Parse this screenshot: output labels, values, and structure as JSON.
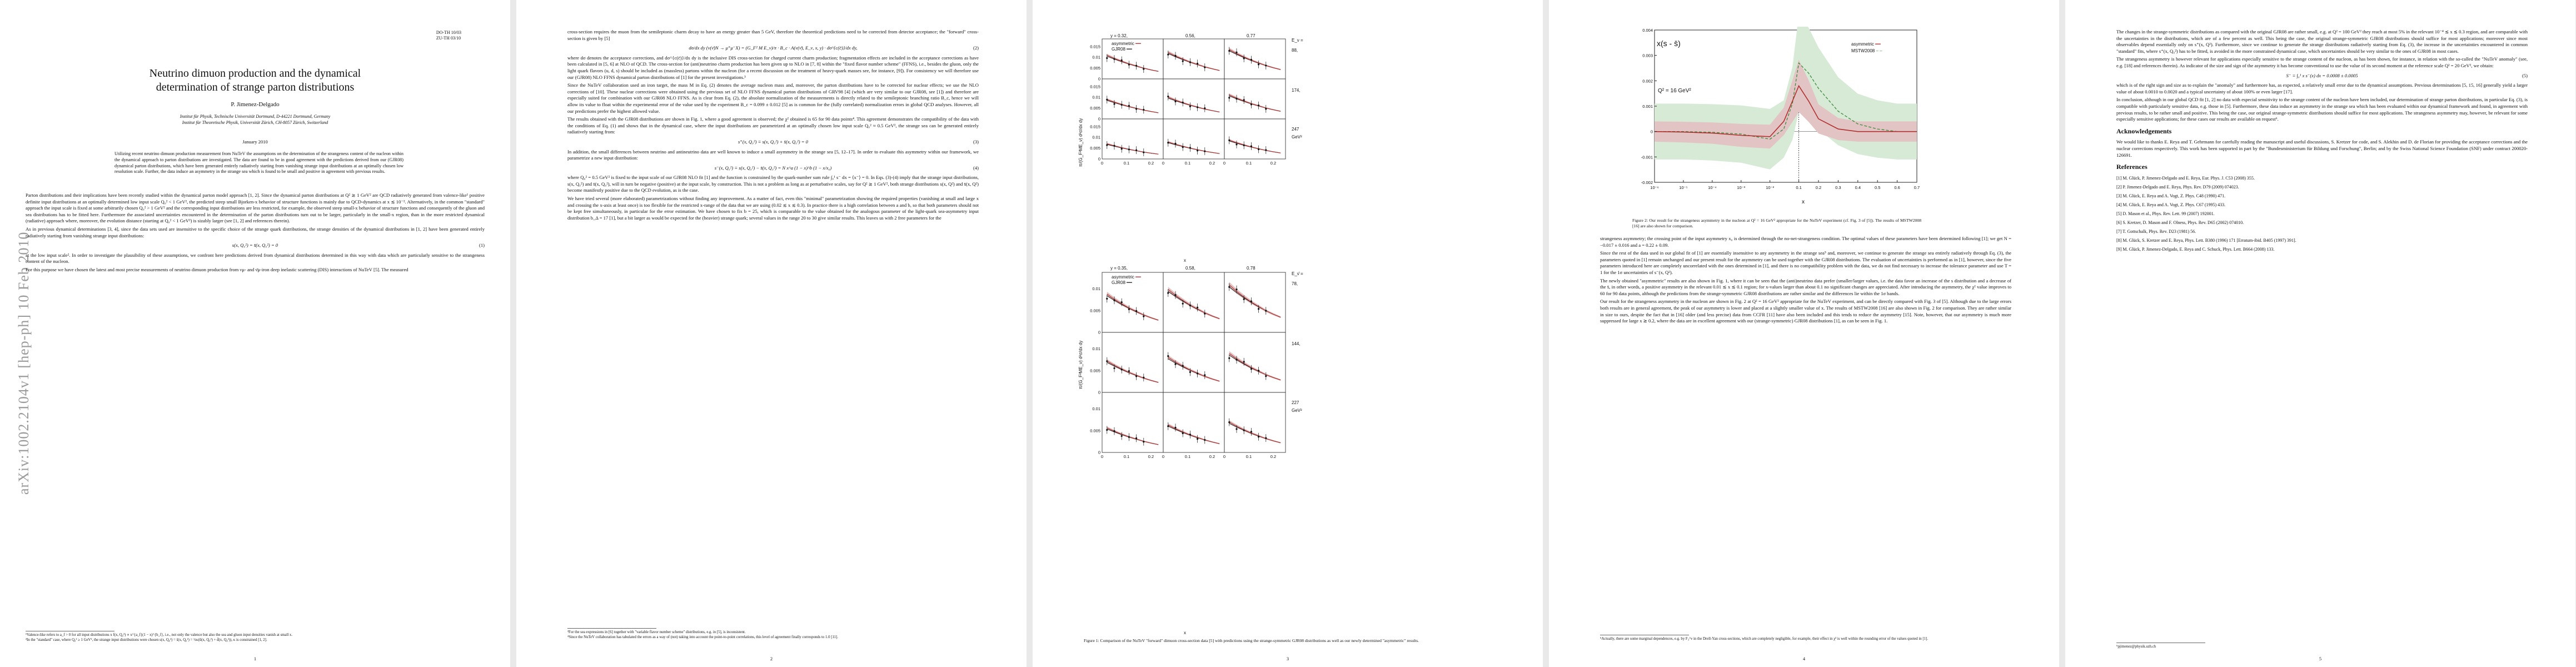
{
  "page1": {
    "arxiv_stamp": "arXiv:1002.2104v1  [hep-ph]  10 Feb 2010",
    "report_numbers": [
      "DO-TH 10/03",
      "ZU-TH 03/10"
    ],
    "title_line1": "Neutrino dimuon production and the dynamical",
    "title_line2": "determination of strange parton distributions",
    "author": "P. Jimenez-Delgado",
    "affiliation1": "Institut für Physik, Technische Universität Dortmund, D-44221 Dortmund, Germany",
    "affiliation2": "Institut für Theoretische Physik, Universität Zürich, CH-8057 Zürich, Switzerland",
    "date": "January 2010",
    "abstract": "Utilizing recent neutrino dimuon production measurement from NuTeV the assumptions on the determination of the strangeness content of the nucleon within the dynamical approach to parton distributions are investigated. The data are found to be in good agreement with the predictions derived from our (GJR08) dynamical parton distributions, which have been generated entirely radiatively starting from vanishing strange input distributions at an optimally chosen low resolution scale. Further, the data induce an asymmetry in the strange sea which is found to be small and positive in agreement with previous results.",
    "body_p1": "Parton distributions and their implications have been recently studied within the dynamical parton model approach [1, 2]. Since the dynamical parton distributions at Q² ≳ 1 GeV² are QCD radiatively generated from valence-like¹ positive definite input distributions at an optimally determined low input scale Q₀² < 1 GeV², the predicted steep small Bjorken-x behavior of structure functions is mainly due to QCD-dynamics at x ≲ 10⁻². Alternatively, in the common \"standard\" approach the input scale is fixed at some arbitrarily chosen Q₀² > 1 GeV² and the corresponding input distributions are less restricted, for example, the observed steep small-x behavior of structure functions and consequently of the gluon and sea distributions has to be fitted here. Furthermore the associated uncertainties encountered in the determination of the parton distributions turn out to be larger, particularly in the small-x region, than in the more restricted dynamical (radiative) approach where, moreover, the evolution distance (starting at Q₀² < 1 GeV²) is sizably larger (see [1, 2] and references therein).",
    "body_p2": "As in previous dynamical determinations [3, 4], since the data sets used are insensitive to the specific choice of the strange quark distributions, the strange densities of the dynamical distributions in [1, 2] have been generated entirely radiatively starting from vanishing strange input distributions:",
    "eq1": "s(x, Q₀²) = s̄(x, Q₀²) = 0",
    "eq1_num": "(1)",
    "body_p3": "at the low input scale². In order to investigate the plausibility of these assumptions, we confront here predictions derived from dynamical distributions determined in this way with data which are particularly sensitive to the strangeness content of the nucleon.",
    "body_p4": "For this purpose we have chosen the latest and most precise measurements of neutrino dimuon production from νμ- and ν̄μ-iron deep inelastic scattering (DIS) interactions of NuTeV [5]. The measured",
    "footnote1": "¹Valence-like refers to a_f > 0 for all input distributions x f(x, Q₀²) ∝ x^{a_f}(1 − x)^{b_f}, i.e., not only the valence but also the sea and gluon input densities vanish at small x.",
    "footnote2": "²In the \"standard\" case, where Q₀² ≥ 1 GeV², the strange input distributions were chosen s(x, Q₀²) = s̄(x, Q₀²) = ½κ(ū(x, Q₀²) + d̄(x, Q₀²)), κ is constrained [1, 2].",
    "page_number": "1"
  },
  "page2": {
    "p1": "cross-section requires the muon from the semileptonic charm decay to have an energy greater than 5 GeV, therefore the theoretical predictions need to be corrected from detector acceptance; the \"forward\" cross-section is given by [5]",
    "eq2": "dσ/dx dy (ν(ν̄)N → μ⁺μ⁻X) = (G_F² M E_ν)/π · B_c · A(ν(ν̄), E_ν, x, y) · dσ^{c(c̄)}/dx dy,",
    "eq2_num": "(2)",
    "p2": "where dσ denotes the acceptance corrections, and dσ^{c(c̄)}/dx dy is the inclusive DIS cross-section for charged current charm production; fragmentation effects are included in the acceptance corrections as have been calculated in [5, 6] at NLO of QCD. The cross-section for (anti)neutrino charm production has been given up to NLO in [7, 8] within the \"fixed flavor number scheme\" (FFNS), i.e., besides the gluon, only the light quark flavors (u, d, s) should be included as (massless) partons within the nucleon (for a recent discussion on the treatment of heavy-quark masses see, for instance, [9]). For consistency we will therefore use our (GJR08) NLO FFNS dynamical parton distributions of [1] for the present investigations.³",
    "p3": "Since the NuTeV collaboration used an iron target, the mass M in Eq. (2) denotes the average nucleon mass and, moreover, the parton distributions have to be corrected for nuclear effects; we use the NLO corrections of [10]. These nuclear corrections were obtained using the previous set of NLO FFNS dynamical parton distributions of GRV98 [4] (which are very similar to our GJR08, see [1]) and therefore are especially suited for combination with our GJR08 NLO FFNS. As is clear from Eq. (2), the absolute normalization of the measurements is directly related to the semileptonic branching ratio B_c, hence we will allow its value to float within the experimental error of the value used by the experiment B_c = 0.099 ± 0.012 [5] as is common for the (fully correlated) normalization errors in global QCD analyses. However, all our predictions prefer the highest allowed value.",
    "p4": "The results obtained with the GJR08 distributions are shown in Fig. 1, where a good agreement is observed; the χ² obtained is 65 for 90 data points⁴. This agreement demonstrates the compatibility of the data with the conditions of Eq. (1) and shows that in the dynamical case, where the input distributions are parametrized at an optimally chosen low input scale Q₀² ≈ 0.5 GeV², the strange sea can be generated entirely radiatively starting from:",
    "eq3": "s⁺(x, Q₀²) ≡ s(x, Q₀²) + s̄(x, Q₀²) = 0",
    "eq3_num": "(3)",
    "p5": "In addition, the small differences between neutrino and antineutrino data are well known to induce a small asymmetry in the strange sea [5, 12–17]. In order to evaluate this asymmetry within our framework, we parametrize a new input distribution:",
    "eq4": "s⁻(x, Q₀²) ≡ s(x, Q₀²) − s̄(x, Q₀²) = N x^a (1 − x)^b (1 − x/x₀)",
    "eq4_num": "(4)",
    "p6": "where Q₀² = 0.5 GeV² is fixed to the input scale of our GJR08 NLO fit [1] and the function is constrained by the quark-number sum rule ∫₀¹ s⁻ dx = ⟨x⁻⟩ = 0. In Eqs. (3)-(4) imply that the strange input distributions, s(x, Q₀²) and s̄(x, Q₀²), will in turn be negative (positive) at the input scale, by construction. This is not a problem as long as at perturbative scales, say for Q² ≳ 1 GeV², both strange distributions s(x, Q²) and s̄(x, Q²) become manifestly positive due to the QCD evolution, as is the case.",
    "p7": "We have tried several (more elaborated) parametrizations without finding any improvement. As a matter of fact, even this \"minimal\" parametrization showing the required properties (vanishing at small and large x and crossing the x-axis at least once) is too flexible for the restricted x-range of the data that we are using (0.02 ≲ x ≲ 0.3). In practice there is a high correlation between a and b, so that both parameters should not be kept free simultaneously, in particular for the error estimation. We have chosen to fix b = 25, which is comparable to the value obtained for the analogous parameter of the light-quark sea-asymmetry input distribution b_Δ = 17 [1], but a bit larger as would be expected for the (heavier) strange quark; several values in the range 20 to 30 give similar results. This leaves us with 2 free parameters for the",
    "footnote3": "³For the sea expressions in [6] together with \"variable flavor number scheme\" distributions, e.g. in [5], is inconsistent.",
    "footnote4": "⁴Since the NuTeV collaboration has tabulated the errors as a way of (not) taking into account the point-to-point correlations, this level of agreement finally corresponds to 1.0 [11].",
    "page_number": "2"
  },
  "page3": {
    "top_titles": [
      "y = 0.32,",
      "0.56,",
      "0.77"
    ],
    "bottom_titles": [
      "y = 0.35,",
      "0.58,",
      "0.78"
    ],
    "top_energies": [
      "E_ν =",
      "88,",
      "174,",
      "247",
      "GeV²"
    ],
    "bottom_energies": [
      "E_ν̄ =",
      "78,",
      "144,",
      "227",
      "GeV²"
    ],
    "legend_asym": "asymmetric",
    "legend_gjr": "GJR08",
    "y_axis_label": "π/(G_F²ME_ν) d²σ/dx dy",
    "x_axis_label": "x",
    "y_ticks_top": [
      "0.015",
      "0.01",
      "0.005",
      "0"
    ],
    "y_ticks_bottom": [
      "0.01",
      "0.005",
      "0"
    ],
    "x_ticks": [
      "0",
      "0.1",
      "0.2"
    ],
    "caption": "Figure 1: Comparison of the NuTeV \"forward\" dimuon cross-section data [5] with predictions using the strange-symmetric GJR08 distributions as well as our newly determined \"asymmetric\" results.",
    "page_number": "3"
  },
  "page4": {
    "plot_title": "x(s - s̄)",
    "q2_label": "Q² = 16 GeV²",
    "legend_asym": "asymmetric",
    "legend_mstw": "MSTW2008",
    "x_ticks_left": [
      "10⁻⁶",
      "10⁻⁵",
      "10⁻⁴",
      "10⁻³",
      "10⁻²",
      "0.1"
    ],
    "x_ticks_right": [
      "0.2",
      "0.3",
      "0.4",
      "0.5",
      "0.6",
      "0.7"
    ],
    "y_ticks": [
      "0.004",
      "0.003",
      "0.002",
      "0.001",
      "0",
      "-0.001",
      "-0.002"
    ],
    "x_axis_label": "x",
    "caption": "Figure 2: Our result for the strangeness asymmetry in the nucleon at Q² = 16 GeV² appropriate for the NuTeV experiment (cf. Fig. 3 of [5]). The results of MSTW2008 [16] are also shown for comparison.",
    "p1": "strangeness asymmetry; the crossing point of the input asymmetry x₀ is determined through the no-net-strangeness condition. The optimal values of these parameters have been determined following [1]; we get N = −0.017 ± 0.016 and a = 0.22 ± 0.09.",
    "p2": "Since the rest of the data used in our global fit of [1] are essentially insensitive to any asymmetry in the strange sea⁵ and, moreover, we continue to generate the strange sea entirely radiatively through Eq. (3), the parameters quoted in [1] remain unchanged and our present result for the asymmetry can be used together with the GJR08 distributions. The evaluation of uncertainties is performed as in [1], however, since the five parameters introduced here are completely uncorrelated with the ones determined in [1], and there is no compatibility problem with the data, we do not find necessary to increase the tolerance parameter and use T = 1 for the 1σ uncertainties of s⁻(x, Q²).",
    "p3": "The newly obtained \"asymmetric\" results are also shown in Fig. 1, where it can be seen that the (anti)neutrino data prefer (smaller/larger values, i.e. the data favor an increase of the s distribution and a decrease of the s̄, in other words, a positive asymmetry in the relevant 0.01 ≲ x ≲ 0.1 region; for x-values larger than about 0.1 no significant changes are appreciated. After introducing the asymmetry, the χ² value improves to 60 for 90 data points, although the predictions from the strange-symmetric GJR08 distributions are rather similar and the differences lie within the 1σ bands.",
    "p4": "Our result for the strangeness asymmetry in the nucleon are shown in Fig. 2 at Q² = 16 GeV² appropriate for the NuTeV experiment, and can be directly compared with Fig. 3 of [5]. Although due to the large errors both results are in general agreement, the peak of our asymmetry is lower and placed at a slightly smaller value of x. The results of MSTW2008 [16] are also shown in Fig. 2 for comparison. They are rather similar in size to ours, despite the fact that in [16] older (and less precise) data from CCFR [11] have also been included and this tends to reduce the asymmetry [15]. Note, however, that our asymmetry is much more suppressed for large x ≳ 0.2, where the data are in excellent agreement with our (strange-symmetric) GJR08 distributions [1], as can be seen in Fig. 1.",
    "footnote5": "⁵Actually, there are some marginal dependences, e.g. by F₃^ν in the Drell-Yan cross-sections, which are completely negligible, for example, their effect in χ² is well within the rounding error of the values quoted in [1].",
    "page_number": "4"
  },
  "page5": {
    "p1": "The changes in the strange-symmetric distributions as compared with the original GJR08 are rather small, e.g. at Q² = 100 GeV² they reach at most 5% in the relevant 10⁻⁴ ≲ x ≲ 0.3 region, and are comparable with the uncertainties in the distributions, which are of a few percent as well. This being the case, the original strange-symmetric GJR08 distributions should suffice for most applications; moreover since most observables depend essentially only on s⁺(x, Q²). Furthermore, since we continue to generate the strange distributions radiatively starting from Eq. (3), the increase in the uncertainties encountered in common \"standard\" fits, where s⁺(x, Q₀²) has to be fitted, is avoided in the more constrained dynamical case, which uncertainties should be very similar to the ones of GJR08 in most cases.",
    "p2": "The strangeness asymmetry is however relevant for applications especially sensitive to the strange content of the nucleon, as has been shown, for instance, in relation with the so-called the \"NuTeV anomaly\" (see, e.g. [18] and references therein). As indicator of the size and sign of the asymmetry it has become conventional to use the value of its second moment at the reference scale Q² = 20 GeV², we obtain:",
    "eq5": "S⁻ ≡ ∫₀¹ x s⁻(x) dx = 0.0008 ± 0.0005",
    "eq5_num": "(5)",
    "p3": "which is of the right sign and size as to explain the \"anomaly\" and furthermore has, as expected, a relatively small error due to the dynamical assumptions. Previous determinations [5, 15, 16] generally yield a larger value of about 0.0010 to 0.0020 and a typical uncertainty of about 100% or even larger [17].",
    "p4": "In conclusion, although in our global QCD fit [1, 2] no data with especial sensitivity to the strange content of the nucleon have been included, our determination of strange parton distributions, in particular Eq. (3), is compatible with particularly sensitive data, e.g. those in [5]. Furthermore, these data induce an asymmetry in the strange sea which has been evaluated within our dynamical framework and found, in agreement with previous results, to be rather small and positive. This being the case, our original strange-symmetric distributions should suffice for most applications. The strangeness asymmetry may, however, be relevant for some especially sensitive applications; for these cases our results are available on request⁶.",
    "ack_heading": "Acknowledgements",
    "ack": "We would like to thanks E. Reya and T. Gehrmann for carefully reading the manuscript and useful discussions, S. Kretzer for code, and S. Alekhin and D. de Florian for providing the acceptance corrections and the nuclear corrections respectively. This work has been supported in part by the \"Bundesministerium für Bildung und Forschung\", Berlin; and by the Swiss National Science Foundation (SNF) under contract 200020-126691.",
    "refs_heading": "References",
    "refs": [
      "[1]  M. Glück, P. Jimenez-Delgado and E. Reya, Eur. Phys. J. C53 (2008) 355.",
      "[2]  P. Jimenez-Delgado and E. Reya, Phys. Rev. D79 (2009) 074023.",
      "[3]  M. Glück, E. Reya and A. Vogt, Z. Phys. C48 (1990) 471.",
      "[4]  M. Glück, E. Reya and A. Vogt, Z. Phys. C67 (1995) 433.",
      "[5]  D. Mason et al., Phys. Rev. Lett. 99 (2007) 192001.",
      "[6]  S. Kretzer, D. Mason and F. Olness, Phys. Rev. D65 (2002) 074010.",
      "[7]  T. Gottschalk, Phys. Rev. D23 (1981) 56.",
      "[8]  M. Glück, S. Kretzer and E. Reya, Phys. Lett. B380 (1996) 171 [Erratum-ibid. B405 (1997) 391].",
      "[9]  M. Glück, P. Jimenez-Delgado, E. Reya and C. Schuck, Phys. Lett. B664 (2008) 133."
    ],
    "footnote6": "⁶pjimenez@physik.uzh.ch",
    "page_number": "5"
  },
  "colors": {
    "asymmetric": "#b03030",
    "band": "#e3c4c4",
    "mstw": "#3a8a3a",
    "mstw_band": "#d6ead6",
    "gjr": "#222222"
  },
  "chart_data": [
    {
      "type": "line",
      "title": "",
      "xlabel": "x",
      "ylabel": "π/(G_F²ME_ν) d²σ/dx dy",
      "panel_grid": "3x3 neutrino (top) + 3x3 antineutrino (bottom)",
      "x": [
        0.02,
        0.05,
        0.08,
        0.11,
        0.14,
        0.17,
        0.2,
        0.23
      ],
      "series": [
        {
          "name": "asymmetric",
          "values": [
            0.011,
            0.0095,
            0.0082,
            0.007,
            0.006,
            0.005,
            0.0042,
            0.0035
          ]
        },
        {
          "name": "GJR08",
          "values": [
            0.0105,
            0.0092,
            0.008,
            0.0069,
            0.0059,
            0.005,
            0.0042,
            0.0035
          ]
        }
      ],
      "xlim": [
        0,
        0.25
      ],
      "ylim": [
        0,
        0.017
      ]
    },
    {
      "type": "line",
      "title": "x(s - s̄)",
      "xlabel": "x",
      "ylabel": "",
      "x": [
        1e-06,
        1e-05,
        0.0001,
        0.001,
        0.01,
        0.03,
        0.06,
        0.1,
        0.15,
        0.2,
        0.3,
        0.4,
        0.5,
        0.6,
        0.7
      ],
      "series": [
        {
          "name": "asymmetric",
          "values": [
            0.0,
            -2e-05,
            -6e-05,
            -0.00015,
            -0.0002,
            0.0004,
            0.0012,
            0.0018,
            0.0012,
            0.0005,
            0.0001,
            0.0,
            0.0,
            0.0,
            0.0
          ]
        },
        {
          "name": "MSTW2008",
          "values": [
            0.0,
            0.0,
            -3e-05,
            -0.0001,
            -0.0003,
            0.0001,
            0.0011,
            0.0027,
            0.0023,
            0.0017,
            0.0008,
            0.0003,
            0.0001,
            0.0,
            0.0
          ]
        }
      ],
      "ylim": [
        -0.002,
        0.004
      ],
      "grid": false,
      "legend": "top-right"
    }
  ]
}
